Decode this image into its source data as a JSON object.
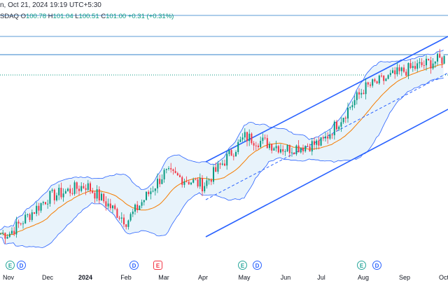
{
  "header": {
    "line1": "n, Oct 21, 2024 19:19 UTC+5:30",
    "symbol_suffix": "SDAQ",
    "open_label": "O",
    "open": "100.78",
    "high_label": "H",
    "high": "101.04",
    "low_label": "L",
    "low": "100.51",
    "close_label": "C",
    "close": "101.00",
    "change": "+0.31 (+0.31%)"
  },
  "colors": {
    "up": "#089981",
    "down": "#f23645",
    "band_fill": "#e8f3fb",
    "band_line": "#2962ff",
    "ma": "#f57c00",
    "channel": "#2962ff",
    "hline": "#5b9bd5"
  },
  "x_axis": {
    "ticks": [
      {
        "label": "Nov",
        "bold": false
      },
      {
        "label": "Dec",
        "bold": false
      },
      {
        "label": "2024",
        "bold": true
      },
      {
        "label": "Feb",
        "bold": false
      },
      {
        "label": "Mar",
        "bold": false
      },
      {
        "label": "Apr",
        "bold": false
      },
      {
        "label": "May",
        "bold": false
      },
      {
        "label": "Jun",
        "bold": false
      },
      {
        "label": "Jul",
        "bold": false
      },
      {
        "label": "Aug",
        "bold": false
      },
      {
        "label": "Sep",
        "bold": false
      },
      {
        "label": "Oct",
        "bold": false
      }
    ]
  },
  "events": [
    {
      "letter": "E",
      "kind": "earnings",
      "month": "Nov"
    },
    {
      "letter": "D",
      "kind": "dividend",
      "month": "Nov"
    },
    {
      "letter": "D",
      "kind": "dividend",
      "month": "Feb"
    },
    {
      "letter": "E",
      "kind": "earnings-red",
      "month": "Feb"
    },
    {
      "letter": "E",
      "kind": "earnings",
      "month": "May"
    },
    {
      "letter": "D",
      "kind": "dividend",
      "month": "May"
    },
    {
      "letter": "E",
      "kind": "earnings",
      "month": "Aug"
    },
    {
      "letter": "D",
      "kind": "dividend",
      "month": "Aug"
    }
  ],
  "chart_data": {
    "type": "candlestick",
    "indicators": [
      "bollinger_bands",
      "moving_average",
      "ascending_channel"
    ],
    "grid": false,
    "close_trend": [
      {
        "month": "Nov",
        "close": 72
      },
      {
        "month": "Dec",
        "close": 78
      },
      {
        "month": "Jan",
        "close": 80
      },
      {
        "month": "Feb",
        "close": 74
      },
      {
        "month": "Mar",
        "close": 82
      },
      {
        "month": "Apr",
        "close": 80
      },
      {
        "month": "May",
        "close": 88
      },
      {
        "month": "Jun",
        "close": 86
      },
      {
        "month": "Jul",
        "close": 87
      },
      {
        "month": "Aug",
        "close": 96
      },
      {
        "month": "Sep",
        "close": 99
      },
      {
        "month": "Oct",
        "close": 101
      }
    ]
  }
}
